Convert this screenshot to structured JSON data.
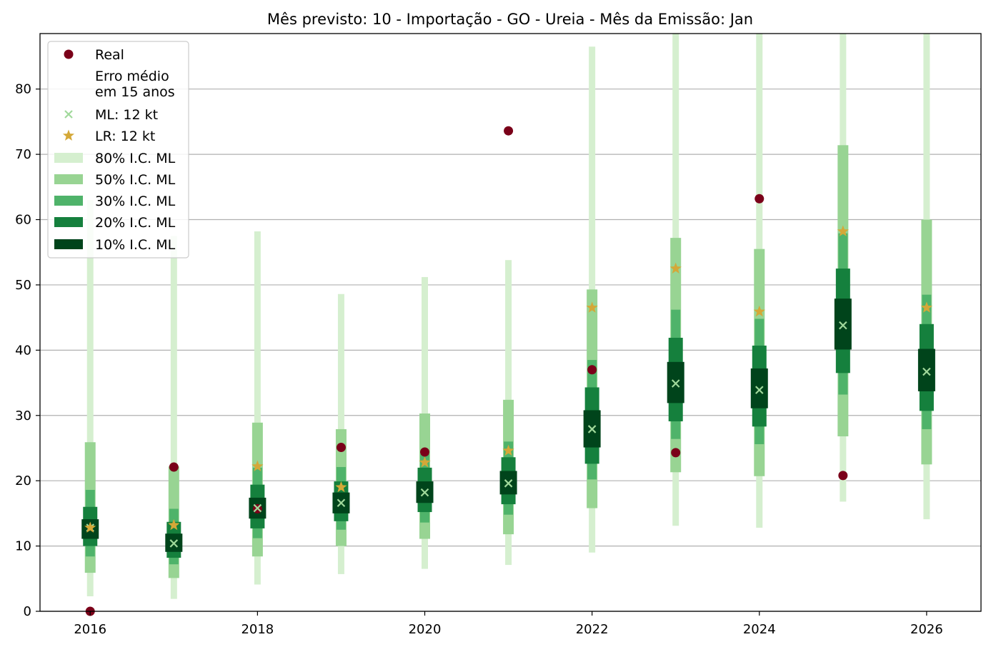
{
  "chart_data": {
    "type": "scatter",
    "title": "Mês previsto: 10 - Importação - GO - Ureia - Mês da Emissão: Jan",
    "xlabel": "",
    "ylabel": "",
    "xlim": [
      2015.4,
      2026.65
    ],
    "ylim": [
      0,
      88.5
    ],
    "xticks": [
      2016,
      2018,
      2020,
      2022,
      2024,
      2026
    ],
    "yticks": [
      0,
      10,
      20,
      30,
      40,
      50,
      60,
      70,
      80
    ],
    "grid": "horizontal",
    "legend_position": "top-left",
    "years": [
      2016,
      2017,
      2018,
      2019,
      2020,
      2021,
      2022,
      2023,
      2024,
      2025,
      2026
    ],
    "series": [
      {
        "name": "Real",
        "marker": "circle",
        "color": "#7a0019",
        "values": [
          0.0,
          22.1,
          15.7,
          25.1,
          24.4,
          73.6,
          37.0,
          24.3,
          63.2,
          20.8,
          null
        ]
      },
      {
        "name": "ML: 12 kt",
        "marker": "x",
        "color": "#a1d99b",
        "values": [
          12.8,
          10.4,
          15.8,
          16.6,
          18.2,
          19.6,
          27.9,
          34.9,
          33.9,
          43.8,
          36.7
        ]
      },
      {
        "name": "LR: 12 kt",
        "marker": "star",
        "color": "#d4a838",
        "values": [
          12.8,
          13.2,
          22.2,
          19.0,
          22.8,
          24.6,
          46.5,
          52.5,
          45.9,
          58.2,
          46.5
        ]
      }
    ],
    "intervals": [
      {
        "name": "80% I.C. ML",
        "color": "#d5efcf",
        "low": [
          2.3,
          1.9,
          4.1,
          5.7,
          6.5,
          7.1,
          9.0,
          13.1,
          12.8,
          16.8,
          14.1
        ],
        "high": [
          63.0,
          57.5,
          58.2,
          48.6,
          51.2,
          53.8,
          86.5,
          88.5,
          88.5,
          88.5,
          88.5
        ]
      },
      {
        "name": "50% I.C. ML",
        "color": "#98d493",
        "low": [
          5.9,
          5.1,
          8.4,
          10.0,
          11.1,
          11.8,
          15.8,
          21.3,
          20.7,
          26.8,
          22.5
        ],
        "high": [
          25.9,
          22.2,
          28.9,
          27.9,
          30.3,
          32.4,
          49.3,
          57.2,
          55.5,
          71.4,
          60.0
        ]
      },
      {
        "name": "30% I.C. ML",
        "color": "#4fb36a",
        "low": [
          8.4,
          7.2,
          11.2,
          12.5,
          13.6,
          14.8,
          20.2,
          26.4,
          25.6,
          33.2,
          27.9
        ],
        "high": [
          18.6,
          15.7,
          22.0,
          22.1,
          24.1,
          26.0,
          38.5,
          46.2,
          44.8,
          57.9,
          48.5
        ]
      },
      {
        "name": "20% I.C. ML",
        "color": "#15803d",
        "low": [
          10.0,
          8.2,
          12.7,
          13.8,
          15.2,
          16.4,
          22.6,
          29.1,
          28.3,
          36.5,
          30.7
        ],
        "high": [
          16.0,
          13.7,
          19.4,
          19.9,
          22.0,
          23.6,
          34.3,
          41.9,
          40.7,
          52.5,
          44.0
        ]
      },
      {
        "name": "10% I.C. ML",
        "color": "#00441b",
        "low": [
          11.1,
          9.1,
          14.2,
          15.0,
          16.6,
          17.9,
          25.1,
          31.9,
          31.1,
          40.1,
          33.7
        ],
        "high": [
          14.1,
          11.9,
          17.4,
          18.2,
          19.9,
          21.5,
          30.8,
          38.2,
          37.2,
          47.9,
          40.2
        ]
      }
    ],
    "legend_extra": [
      "Erro médio",
      "em 15 anos"
    ]
  }
}
